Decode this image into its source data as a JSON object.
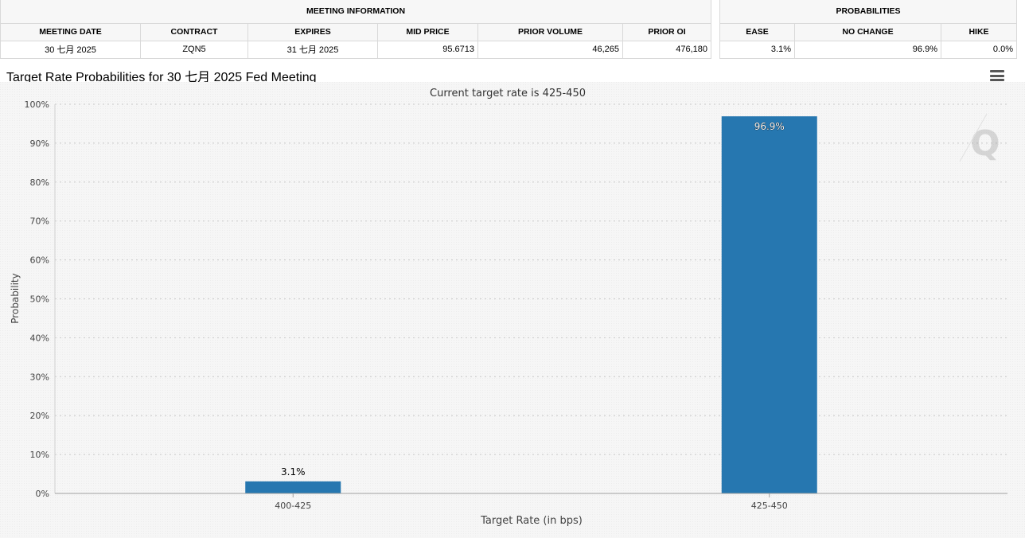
{
  "meeting_info": {
    "group_label": "MEETING INFORMATION",
    "columns": [
      "MEETING DATE",
      "CONTRACT",
      "EXPIRES",
      "MID PRICE",
      "PRIOR VOLUME",
      "PRIOR OI"
    ],
    "row": [
      "30 七月 2025",
      "ZQN5",
      "31 七月 2025",
      "95.6713",
      "46,265",
      "476,180"
    ]
  },
  "probabilities": {
    "group_label": "PROBABILITIES",
    "columns": [
      "EASE",
      "NO CHANGE",
      "HIKE"
    ],
    "row": [
      "3.1%",
      "96.9%",
      "0.0%"
    ]
  },
  "chart_title": "Target Rate Probabilities for 30 七月 2025 Fed Meeting",
  "menu_icon": "hamburger-menu-icon",
  "chart_data": {
    "type": "bar",
    "subtitle": "Current target rate is 425-450",
    "categories": [
      "400-425",
      "425-450"
    ],
    "values": [
      3.1,
      96.9
    ],
    "data_labels": [
      "3.1%",
      "96.9%"
    ],
    "xlabel": "Target Rate (in bps)",
    "ylabel": "Probability",
    "ylim": [
      0,
      100
    ],
    "yticks": [
      "0%",
      "10%",
      "20%",
      "30%",
      "40%",
      "50%",
      "60%",
      "70%",
      "80%",
      "90%",
      "100%"
    ],
    "bar_color": "#2677b0",
    "grid": true
  }
}
